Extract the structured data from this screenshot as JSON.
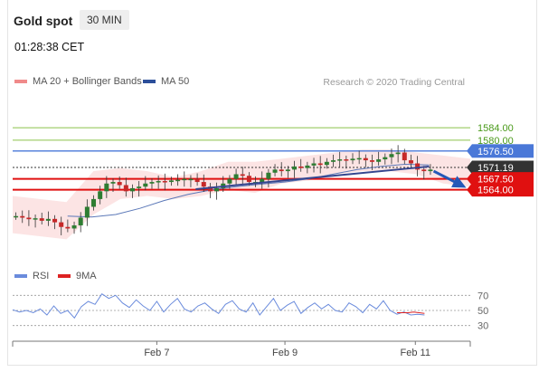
{
  "header": {
    "title": "Gold spot",
    "timeframe": "30 MIN"
  },
  "timestamp": "01:28:38 CET",
  "legend": {
    "main": [
      {
        "label": "MA 20 + Bollinger Bands",
        "color": "#f08a8a"
      },
      {
        "label": "MA 50",
        "color": "#2c4f9a"
      }
    ],
    "rsi": [
      {
        "label": "RSI",
        "color": "#6a8bdc"
      },
      {
        "label": "9MA",
        "color": "#dd2222"
      }
    ]
  },
  "copyright": "Research © 2020 Trading Central",
  "chart_data": {
    "type": "line",
    "title": "Gold spot",
    "timeframe": "30 MIN",
    "x_ticks": [
      "Feb 7",
      "Feb 9",
      "Feb 11"
    ],
    "y_range": [
      1542,
      1596
    ],
    "levels": [
      {
        "value": 1584.0,
        "label": "1584.00",
        "color": "#8bc34a",
        "style": "thin"
      },
      {
        "value": 1580.0,
        "label": "1580.00",
        "color": "#8bc34a",
        "style": "thin"
      },
      {
        "value": 1576.5,
        "label": "1576.50",
        "color": "#4a78d8",
        "style": "medium",
        "badge": true
      },
      {
        "value": 1571.19,
        "label": "1571.19",
        "color": "#333333",
        "style": "dotted",
        "badge": true
      },
      {
        "value": 1567.5,
        "label": "1567.50",
        "color": "#e01010",
        "style": "thick",
        "badge": true
      },
      {
        "value": 1564.0,
        "label": "1564.00",
        "color": "#e01010",
        "style": "thick",
        "badge": true
      }
    ],
    "price_series": [
      1555.5,
      1555.0,
      1554.5,
      1554.8,
      1554.0,
      1554.6,
      1553.5,
      1552.0,
      1551.5,
      1552.5,
      1555.0,
      1558.5,
      1561.0,
      1563.5,
      1566.0,
      1566.5,
      1565.5,
      1563.5,
      1564.5,
      1565.0,
      1566.0,
      1566.5,
      1566.8,
      1566.5,
      1567.0,
      1567.2,
      1567.5,
      1567.5,
      1566.5,
      1565.0,
      1563.5,
      1564.5,
      1566.0,
      1567.5,
      1569.0,
      1568.5,
      1566.5,
      1566.5,
      1567.5,
      1569.5,
      1570.5,
      1570.0,
      1570.5,
      1571.5,
      1571.0,
      1571.8,
      1572.5,
      1572.0,
      1573.0,
      1573.5,
      1573.8,
      1573.5,
      1574.0,
      1574.2,
      1573.5,
      1573.0,
      1573.8,
      1574.5,
      1575.5,
      1576.0,
      1573.5,
      1572.5,
      1570.5,
      1570.0,
      1570.5
    ],
    "ma50_series": [
      1555.5,
      1555.2,
      1556.0,
      1558.0,
      1560.5,
      1562.5,
      1564.0,
      1565.0,
      1565.8,
      1566.5,
      1567.5,
      1569.0,
      1570.5,
      1571.5,
      1572.2,
      1572.0
    ],
    "bollinger": {
      "upper": [
        1562,
        1561,
        1560,
        1570,
        1571,
        1570,
        1568,
        1570,
        1573,
        1573,
        1574,
        1575,
        1576,
        1577,
        1577,
        1576,
        1575,
        1574
      ],
      "lower": [
        1550,
        1549,
        1548,
        1556,
        1561,
        1562,
        1561,
        1562,
        1564,
        1563,
        1566,
        1567,
        1569,
        1570,
        1570,
        1569,
        1566,
        1565
      ]
    },
    "trendline": {
      "from": [
        0.4,
        1564.2
      ],
      "to": [
        0.91,
        1571.5
      ]
    },
    "forecast_arrow": {
      "from": [
        0.92,
        1570.0
      ],
      "to": [
        1.0,
        1564.0
      ]
    },
    "rsi": {
      "ticks": [
        "70",
        "50",
        "30"
      ],
      "y_range": [
        20,
        80
      ],
      "series": [
        51,
        48,
        50,
        47,
        52,
        44,
        56,
        46,
        50,
        40,
        55,
        62,
        58,
        72,
        66,
        70,
        60,
        54,
        64,
        56,
        50,
        62,
        48,
        58,
        66,
        52,
        48,
        56,
        60,
        52,
        46,
        58,
        63,
        52,
        48,
        60,
        44,
        55,
        66,
        50,
        57,
        62,
        46,
        54,
        60,
        52,
        58,
        50,
        48,
        60,
        55,
        47,
        58,
        52,
        63,
        50,
        45,
        48,
        44,
        45,
        44
      ],
      "ma9_series": [
        47,
        47,
        47,
        48,
        47,
        46
      ]
    }
  }
}
